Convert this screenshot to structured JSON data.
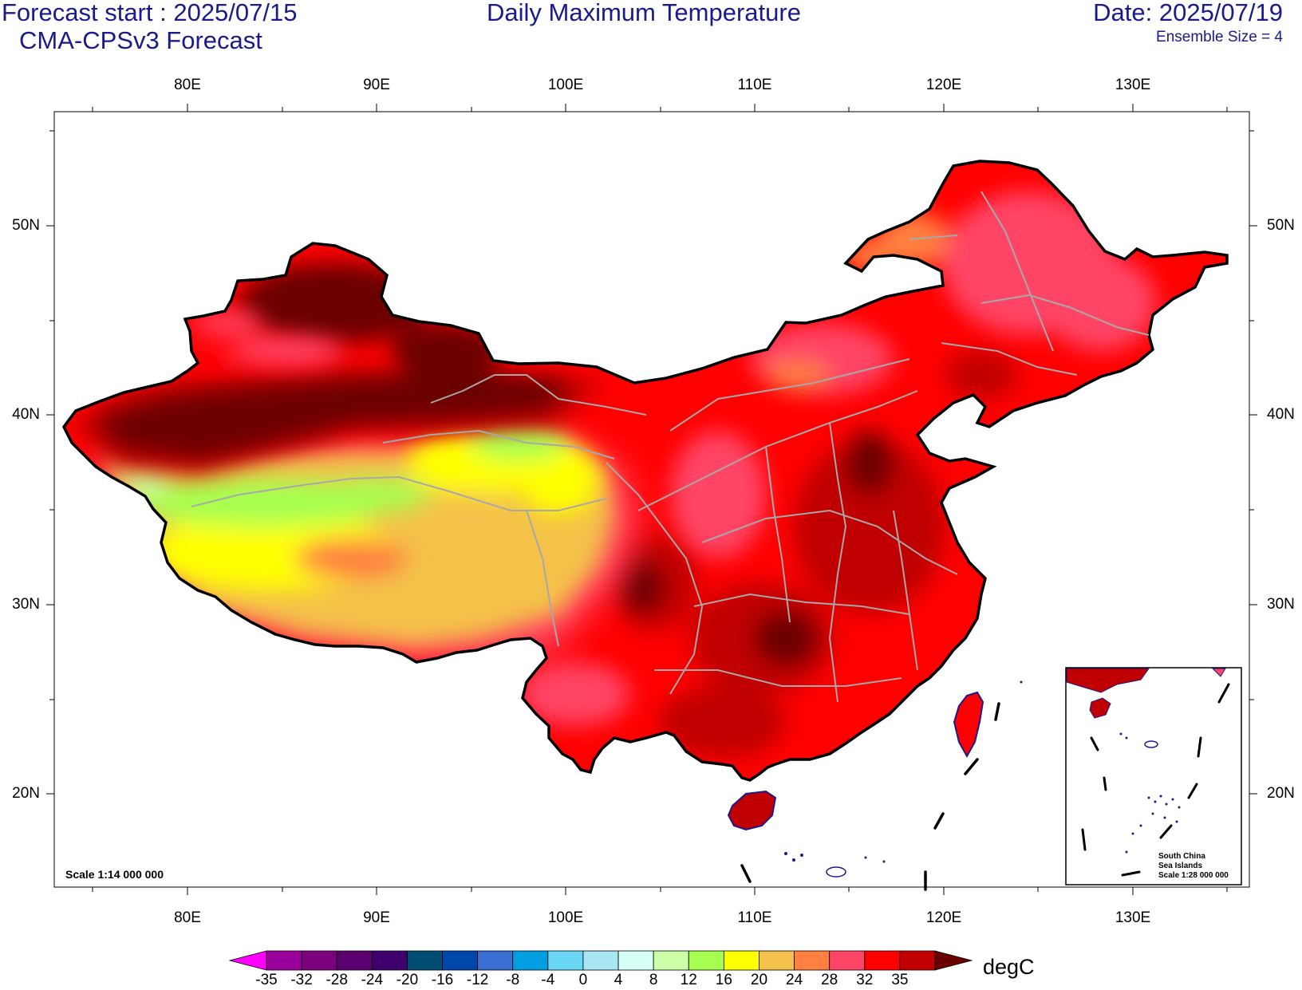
{
  "header": {
    "forecast_start": "Forecast start : 2025/07/15",
    "model": "CMA-CPSv3 Forecast",
    "title": "Daily Maximum Temperature",
    "date": "Date: 2025/07/19",
    "ensemble": "Ensemble Size = 4"
  },
  "axes": {
    "lon_ticks": [
      "80E",
      "90E",
      "100E",
      "110E",
      "120E",
      "130E"
    ],
    "lat_ticks": [
      "50N",
      "40N",
      "30N",
      "20N"
    ]
  },
  "map": {
    "scale_note": "Scale 1:14 000 000",
    "inset_line1": "South China",
    "inset_line2": "Sea Islands",
    "inset_line3": "Scale 1:28 000 000"
  },
  "colorbar": {
    "unit": "degC",
    "labels": [
      "-35",
      "-32",
      "-28",
      "-24",
      "-20",
      "-16",
      "-12",
      "-8",
      "-4",
      "0",
      "4",
      "8",
      "12",
      "16",
      "20",
      "24",
      "28",
      "32",
      "35"
    ],
    "colors": [
      "#ff00ff",
      "#9c009c",
      "#7d007d",
      "#5c0070",
      "#3f006e",
      "#004d73",
      "#0047ab",
      "#3a6fd1",
      "#00a0e0",
      "#6ad8f5",
      "#a8e6f2",
      "#d6fff5",
      "#ccffa8",
      "#a6ff50",
      "#ffff00",
      "#f4c24a",
      "#ff8040",
      "#ff4466",
      "#ff0000",
      "#c00000",
      "#6b0000"
    ]
  }
}
